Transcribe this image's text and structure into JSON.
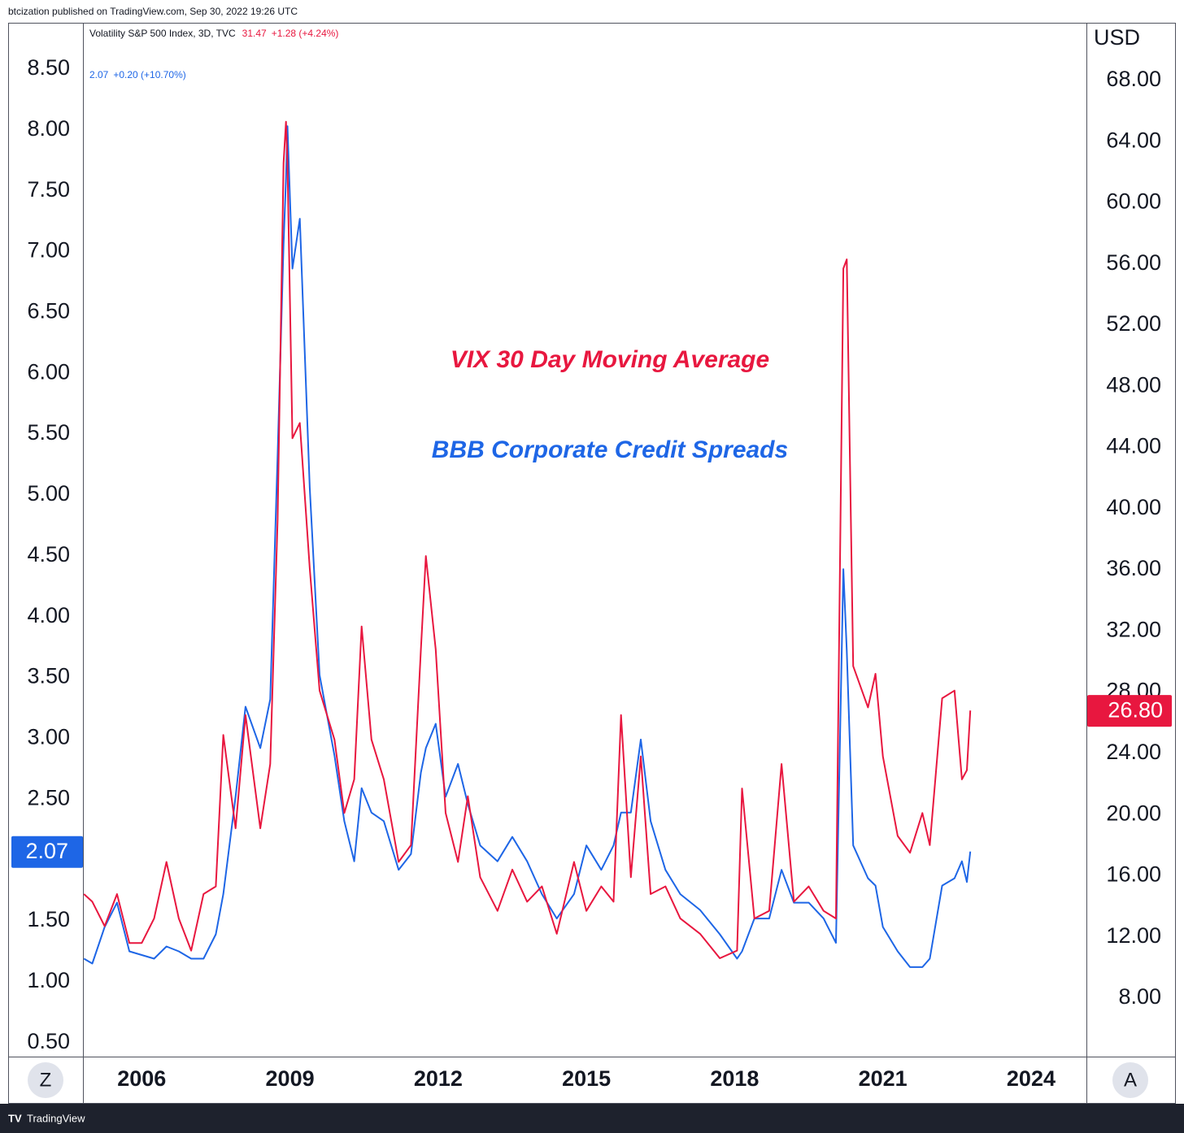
{
  "header": {
    "publisher": "btcization published on TradingView.com, Sep 30, 2022 19:26 UTC",
    "brand": "TradingView",
    "left_button": "Z",
    "right_button": "A"
  },
  "chart_data": {
    "type": "line",
    "y2_label": "USD",
    "annotations": [
      {
        "text": "VIX 30 Day Moving Average",
        "color": "#e8173f"
      },
      {
        "text": "BBB Corporate Credit Spreads",
        "color": "#1e66e6"
      }
    ],
    "x": [
      2004.83,
      2005.0,
      2005.25,
      2005.5,
      2005.75,
      2006.0,
      2006.25,
      2006.5,
      2006.75,
      2007.0,
      2007.25,
      2007.5,
      2007.65,
      2007.9,
      2008.1,
      2008.4,
      2008.6,
      2008.75,
      2008.87,
      2008.92,
      2008.95,
      2009.05,
      2009.2,
      2009.4,
      2009.6,
      2009.9,
      2010.1,
      2010.3,
      2010.45,
      2010.65,
      2010.9,
      2011.2,
      2011.45,
      2011.65,
      2011.75,
      2011.95,
      2012.15,
      2012.4,
      2012.6,
      2012.85,
      2013.2,
      2013.5,
      2013.8,
      2014.1,
      2014.4,
      2014.75,
      2015.0,
      2015.3,
      2015.55,
      2015.7,
      2015.9,
      2016.1,
      2016.3,
      2016.6,
      2016.9,
      2017.3,
      2017.7,
      2018.05,
      2018.15,
      2018.4,
      2018.7,
      2018.95,
      2019.2,
      2019.5,
      2019.8,
      2020.05,
      2020.2,
      2020.27,
      2020.4,
      2020.7,
      2020.85,
      2021.0,
      2021.3,
      2021.55,
      2021.8,
      2021.95,
      2022.2,
      2022.45,
      2022.6,
      2022.7,
      2022.77
    ],
    "series": [
      {
        "name": "Volatility S&P 500 Index, 3D, TVC",
        "readout": "31.47",
        "change": "+1.28 (+4.24%)",
        "last_label": "26.80",
        "color": "#e8173f",
        "axis": "y2",
        "values": [
          14.8,
          14.3,
          12.7,
          14.8,
          11.6,
          11.6,
          13.2,
          16.9,
          13.2,
          11.1,
          14.8,
          15.3,
          25.2,
          19.1,
          26.5,
          19.1,
          23.3,
          39.3,
          62.6,
          65.3,
          62.6,
          44.6,
          45.6,
          36.1,
          28.1,
          24.9,
          20.1,
          22.3,
          32.3,
          24.9,
          22.3,
          16.9,
          18.0,
          30.8,
          36.9,
          30.8,
          20.1,
          16.9,
          21.2,
          15.9,
          13.7,
          16.4,
          14.3,
          15.3,
          12.2,
          16.9,
          13.7,
          15.3,
          14.3,
          26.5,
          15.9,
          23.8,
          14.8,
          15.3,
          13.2,
          12.2,
          10.6,
          11.1,
          21.7,
          13.2,
          13.7,
          23.3,
          14.3,
          15.3,
          13.7,
          13.2,
          55.7,
          56.3,
          29.7,
          27.0,
          29.2,
          23.8,
          18.6,
          17.5,
          20.1,
          18.0,
          27.6,
          28.1,
          22.3,
          22.9,
          26.8
        ]
      },
      {
        "readout": "2.07",
        "change": "+0.20 (+10.70%)",
        "last_label": "2.07",
        "color": "#1e66e6",
        "values": [
          1.19,
          1.15,
          1.45,
          1.65,
          1.25,
          1.22,
          1.19,
          1.29,
          1.25,
          1.19,
          1.19,
          1.39,
          1.72,
          2.52,
          3.26,
          2.92,
          3.32,
          5.33,
          7.06,
          7.6,
          8.03,
          6.86,
          7.27,
          5.06,
          3.52,
          2.86,
          2.32,
          1.99,
          2.59,
          2.39,
          2.32,
          1.92,
          2.05,
          2.72,
          2.92,
          3.12,
          2.52,
          2.79,
          2.46,
          2.12,
          1.99,
          2.19,
          1.99,
          1.72,
          1.52,
          1.72,
          2.12,
          1.92,
          2.12,
          2.39,
          2.39,
          2.99,
          2.32,
          1.92,
          1.72,
          1.59,
          1.39,
          1.19,
          1.25,
          1.52,
          1.52,
          1.92,
          1.65,
          1.65,
          1.52,
          1.32,
          4.39,
          3.72,
          2.12,
          1.85,
          1.79,
          1.45,
          1.25,
          1.12,
          1.12,
          1.19,
          1.79,
          1.85,
          1.99,
          1.82,
          2.07
        ]
      }
    ],
    "xlim": [
      2004.81,
      2025.12
    ],
    "xticks": [
      2006,
      2009,
      2012,
      2015,
      2018,
      2021,
      2024
    ],
    "ylim": [
      0.385,
      8.88
    ],
    "yticks": [
      {
        "value": 0.5,
        "label": "0.50"
      },
      {
        "value": 1,
        "label": "1.00"
      },
      {
        "value": 1.5,
        "label": "1.50"
      },
      {
        "value": 2,
        "label": "2.00"
      },
      {
        "value": 2.5,
        "label": "2.50"
      },
      {
        "value": 3,
        "label": "3.00"
      },
      {
        "value": 3.5,
        "label": "3.50"
      },
      {
        "value": 4,
        "label": "4.00"
      },
      {
        "value": 4.5,
        "label": "4.50"
      },
      {
        "value": 5,
        "label": "5.00"
      },
      {
        "value": 5.5,
        "label": "5.50"
      },
      {
        "value": 6,
        "label": "6.00"
      },
      {
        "value": 6.5,
        "label": "6.50"
      },
      {
        "value": 7,
        "label": "7.00"
      },
      {
        "value": 7.5,
        "label": "7.50"
      },
      {
        "value": 8,
        "label": "8.00"
      },
      {
        "value": 8.5,
        "label": "8.50"
      }
    ],
    "y2lim": [
      4.17,
      71.77
    ],
    "y2ticks": [
      {
        "value": 8,
        "label": "8.00"
      },
      {
        "value": 12,
        "label": "12.00"
      },
      {
        "value": 16,
        "label": "16.00"
      },
      {
        "value": 20,
        "label": "20.00"
      },
      {
        "value": 24,
        "label": "24.00"
      },
      {
        "value": 28,
        "label": "28.00"
      },
      {
        "value": 32,
        "label": "32.00"
      },
      {
        "value": 36,
        "label": "36.00"
      },
      {
        "value": 40,
        "label": "40.00"
      },
      {
        "value": 44,
        "label": "44.00"
      },
      {
        "value": 48,
        "label": "48.00"
      },
      {
        "value": 52,
        "label": "52.00"
      },
      {
        "value": 56,
        "label": "56.00"
      },
      {
        "value": 60,
        "label": "60.00"
      },
      {
        "value": 64,
        "label": "64.00"
      },
      {
        "value": 68,
        "label": "68.00"
      }
    ],
    "grid": false
  }
}
